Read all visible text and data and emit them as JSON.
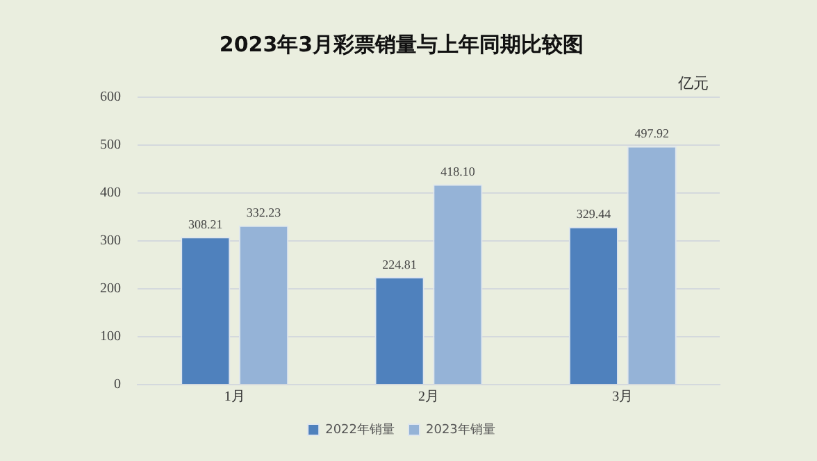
{
  "chart_data": {
    "type": "bar",
    "title": "2023年3月彩票销量与上年同期比较图",
    "ylabel": "亿元",
    "categories": [
      "1月",
      "2月",
      "3月"
    ],
    "series": [
      {
        "name": "2022年销量",
        "color": "#4f81bd",
        "values": [
          308.21,
          224.81,
          329.44
        ],
        "value_labels": [
          "308.21",
          "224.81",
          "329.44"
        ]
      },
      {
        "name": "2023年销量",
        "color": "#95b3d7",
        "values": [
          332.23,
          418.1,
          497.92
        ],
        "value_labels": [
          "332.23",
          "418.10",
          "497.92"
        ]
      }
    ],
    "ylim": [
      0,
      600
    ],
    "yticks": [
      0,
      100,
      200,
      300,
      400,
      500,
      600
    ],
    "grid": "y",
    "legend": "bottom"
  }
}
